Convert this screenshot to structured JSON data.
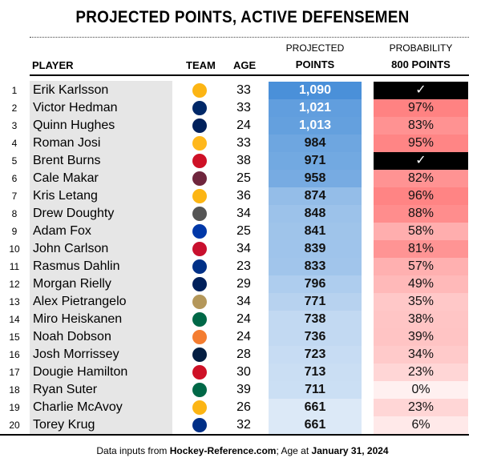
{
  "chart_data": {
    "type": "table",
    "title": "PROJECTED POINTS, ACTIVE DEFENSEMEN",
    "columns": {
      "player": "PLAYER",
      "team": "TEAM",
      "age": "AGE",
      "points_top": "PROJECTED",
      "points": "POINTS",
      "prob_top": "PROBABILITY",
      "prob": "800 POINTS"
    },
    "rows": [
      {
        "rank": "1",
        "name": "Erik Karlsson",
        "team_icon": "penguins-logo",
        "age": "33",
        "points": "1,090",
        "pv": 1090,
        "prob": "✓",
        "pp": 100,
        "achieved": true
      },
      {
        "rank": "2",
        "name": "Victor Hedman",
        "team_icon": "lightning-logo",
        "age": "33",
        "points": "1,021",
        "pv": 1021,
        "prob": "97%",
        "pp": 97
      },
      {
        "rank": "3",
        "name": "Quinn Hughes",
        "team_icon": "canucks-logo",
        "age": "24",
        "points": "1,013",
        "pv": 1013,
        "prob": "83%",
        "pp": 83
      },
      {
        "rank": "4",
        "name": "Roman Josi",
        "team_icon": "predators-logo",
        "age": "33",
        "points": "984",
        "pv": 984,
        "prob": "95%",
        "pp": 95
      },
      {
        "rank": "5",
        "name": "Brent Burns",
        "team_icon": "hurricanes-logo",
        "age": "38",
        "points": "971",
        "pv": 971,
        "prob": "✓",
        "pp": 100,
        "achieved": true
      },
      {
        "rank": "6",
        "name": "Cale Makar",
        "team_icon": "avalanche-logo",
        "age": "25",
        "points": "958",
        "pv": 958,
        "prob": "82%",
        "pp": 82
      },
      {
        "rank": "7",
        "name": "Kris Letang",
        "team_icon": "penguins-logo",
        "age": "36",
        "points": "874",
        "pv": 874,
        "prob": "96%",
        "pp": 96
      },
      {
        "rank": "8",
        "name": "Drew Doughty",
        "team_icon": "kings-logo",
        "age": "34",
        "points": "848",
        "pv": 848,
        "prob": "88%",
        "pp": 88
      },
      {
        "rank": "9",
        "name": "Adam Fox",
        "team_icon": "rangers-logo",
        "age": "25",
        "points": "841",
        "pv": 841,
        "prob": "58%",
        "pp": 58
      },
      {
        "rank": "10",
        "name": "John Carlson",
        "team_icon": "capitals-logo",
        "age": "34",
        "points": "839",
        "pv": 839,
        "prob": "81%",
        "pp": 81
      },
      {
        "rank": "11",
        "name": "Rasmus Dahlin",
        "team_icon": "sabres-logo",
        "age": "23",
        "points": "833",
        "pv": 833,
        "prob": "57%",
        "pp": 57
      },
      {
        "rank": "12",
        "name": "Morgan Rielly",
        "team_icon": "maple-leafs-logo",
        "age": "29",
        "points": "796",
        "pv": 796,
        "prob": "49%",
        "pp": 49
      },
      {
        "rank": "13",
        "name": "Alex Pietrangelo",
        "team_icon": "golden-knights-logo",
        "age": "34",
        "points": "771",
        "pv": 771,
        "prob": "35%",
        "pp": 35
      },
      {
        "rank": "14",
        "name": "Miro Heiskanen",
        "team_icon": "stars-logo",
        "age": "24",
        "points": "738",
        "pv": 738,
        "prob": "38%",
        "pp": 38
      },
      {
        "rank": "15",
        "name": "Noah Dobson",
        "team_icon": "islanders-logo",
        "age": "24",
        "points": "736",
        "pv": 736,
        "prob": "39%",
        "pp": 39
      },
      {
        "rank": "16",
        "name": "Josh Morrissey",
        "team_icon": "jets-logo",
        "age": "28",
        "points": "723",
        "pv": 723,
        "prob": "34%",
        "pp": 34
      },
      {
        "rank": "17",
        "name": "Dougie Hamilton",
        "team_icon": "devils-logo",
        "age": "30",
        "points": "713",
        "pv": 713,
        "prob": "23%",
        "pp": 23
      },
      {
        "rank": "18",
        "name": "Ryan Suter",
        "team_icon": "stars-logo",
        "age": "39",
        "points": "711",
        "pv": 711,
        "prob": "0%",
        "pp": 0
      },
      {
        "rank": "19",
        "name": "Charlie McAvoy",
        "team_icon": "bruins-logo",
        "age": "26",
        "points": "661",
        "pv": 661,
        "prob": "23%",
        "pp": 23
      },
      {
        "rank": "20",
        "name": "Torey Krug",
        "team_icon": "blues-logo",
        "age": "32",
        "points": "661",
        "pv": 661,
        "prob": "6%",
        "pp": 6
      }
    ]
  },
  "footer": {
    "a": "Data inputs from ",
    "b": "Hockey-Reference.com",
    "c": "; Age at ",
    "d": "January 31, 2024"
  },
  "team_colors": {
    "penguins-logo": "#fcb514",
    "lightning-logo": "#002868",
    "canucks-logo": "#00205b",
    "predators-logo": "#ffb81c",
    "hurricanes-logo": "#ce1126",
    "avalanche-logo": "#6f263d",
    "kings-logo": "#555555",
    "rangers-logo": "#0038a8",
    "capitals-logo": "#c8102e",
    "sabres-logo": "#003087",
    "maple-leafs-logo": "#00205b",
    "golden-knights-logo": "#b4975a",
    "stars-logo": "#006847",
    "islanders-logo": "#f47d30",
    "jets-logo": "#041e42",
    "devils-logo": "#ce1126",
    "bruins-logo": "#fcb514",
    "blues-logo": "#002f87"
  }
}
